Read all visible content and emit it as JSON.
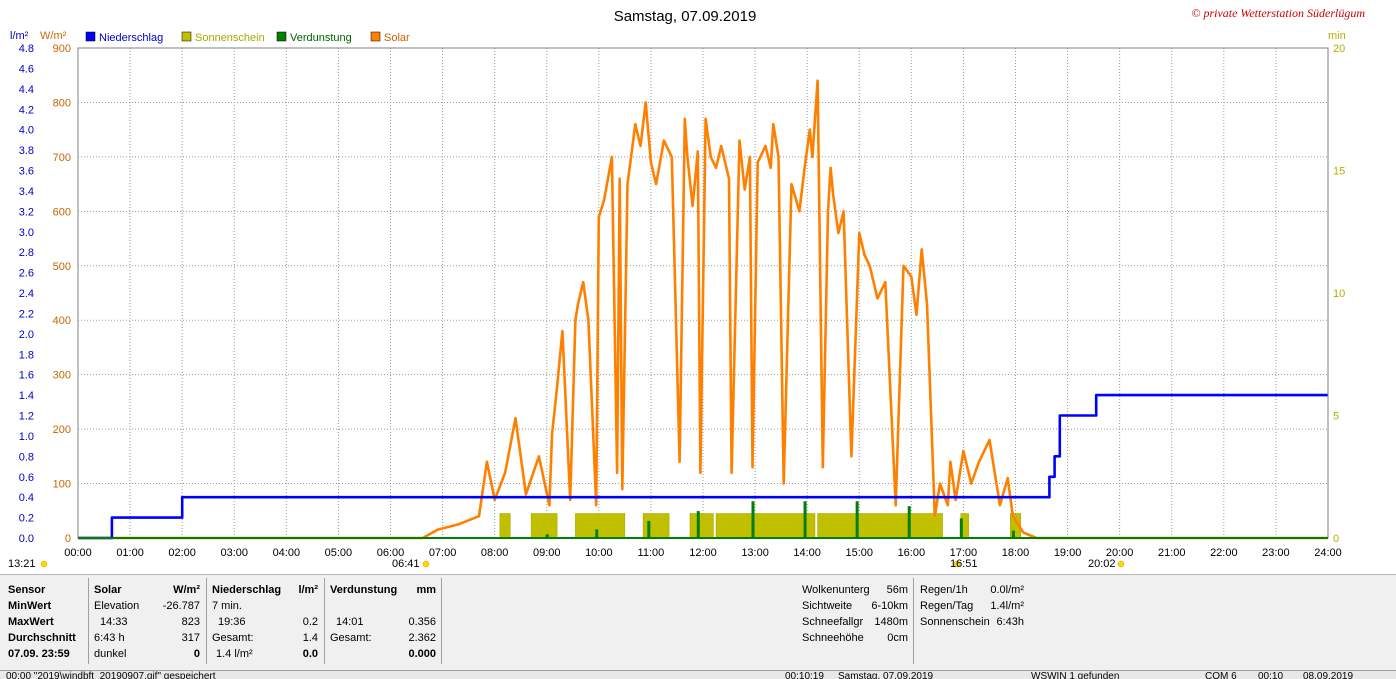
{
  "title": "Samstag, 07.09.2019",
  "copyright": "© private Wetterstation Süderlügum",
  "axis_labels": {
    "left_precip_unit": "l/m²",
    "left_solar_unit": "W/m²",
    "right_unit": "min"
  },
  "legend": [
    {
      "label": "Niederschlag",
      "color": "#0000ff"
    },
    {
      "label": "Sonnenschein",
      "color": "#c0c000"
    },
    {
      "label": "Verdunstung",
      "color": "#008000"
    },
    {
      "label": "Solar",
      "color": "#ff8000"
    }
  ],
  "markers": {
    "first": "13:21",
    "sunrise": "06:41",
    "noon": "16:51",
    "sunset": "20:02"
  },
  "chart_data": {
    "type": "line",
    "x_unit": "hour of day",
    "xlim": [
      0,
      24
    ],
    "x_ticks": [
      "00:00",
      "01:00",
      "02:00",
      "03:00",
      "04:00",
      "05:00",
      "06:00",
      "07:00",
      "08:00",
      "09:00",
      "10:00",
      "11:00",
      "12:00",
      "13:00",
      "14:00",
      "15:00",
      "16:00",
      "17:00",
      "18:00",
      "19:00",
      "20:00",
      "21:00",
      "22:00",
      "23:00",
      "24:00"
    ],
    "y_solar": {
      "min": 0,
      "max": 900,
      "ticks": [
        0,
        100,
        200,
        300,
        400,
        500,
        600,
        700,
        800,
        900
      ]
    },
    "y_precip": {
      "min": 0,
      "max": 4.8,
      "ticks": [
        "0.0",
        "0.2",
        "0.4",
        "0.6",
        "0.8",
        "1.0",
        "1.2",
        "1.4",
        "1.6",
        "1.8",
        "2.0",
        "2.2",
        "2.4",
        "2.6",
        "2.8",
        "3.0",
        "3.2",
        "3.4",
        "3.6",
        "3.8",
        "4.0",
        "4.2",
        "4.4",
        "4.6",
        "4.8"
      ]
    },
    "y_sun": {
      "min": 0,
      "max": 20,
      "ticks": [
        0,
        5,
        10,
        15,
        20
      ]
    },
    "grid": true,
    "series": [
      {
        "name": "Solar",
        "color": "#ff8000",
        "x": [
          0,
          6.62,
          6.9,
          7.3,
          7.7,
          7.85,
          8.0,
          8.2,
          8.4,
          8.6,
          8.85,
          9.05,
          9.1,
          9.2,
          9.3,
          9.45,
          9.55,
          9.6,
          9.7,
          9.8,
          9.95,
          10.0,
          10.1,
          10.25,
          10.35,
          10.4,
          10.45,
          10.55,
          10.7,
          10.8,
          10.9,
          11.0,
          11.1,
          11.25,
          11.4,
          11.55,
          11.65,
          11.7,
          11.8,
          11.9,
          11.95,
          12.05,
          12.15,
          12.25,
          12.35,
          12.5,
          12.55,
          12.7,
          12.8,
          12.9,
          12.95,
          13.05,
          13.2,
          13.3,
          13.35,
          13.45,
          13.55,
          13.7,
          13.85,
          13.95,
          14.05,
          14.1,
          14.2,
          14.3,
          14.4,
          14.45,
          14.5,
          14.6,
          14.7,
          14.85,
          15.0,
          15.1,
          15.2,
          15.35,
          15.5,
          15.7,
          15.85,
          16.0,
          16.1,
          16.2,
          16.3,
          16.45,
          16.55,
          16.7,
          16.75,
          16.85,
          17.0,
          17.15,
          17.3,
          17.5,
          17.7,
          17.85,
          17.95,
          18.15,
          18.4,
          18.6,
          18.8,
          18.9,
          19.0,
          19.1,
          19.2,
          19.35,
          19.55,
          19.8,
          20.05,
          24
        ],
        "y": [
          0,
          0,
          15,
          25,
          40,
          140,
          70,
          120,
          220,
          80,
          150,
          60,
          190,
          280,
          380,
          70,
          400,
          430,
          470,
          400,
          60,
          590,
          620,
          700,
          120,
          660,
          90,
          650,
          760,
          720,
          800,
          690,
          650,
          730,
          700,
          140,
          770,
          700,
          610,
          710,
          120,
          770,
          700,
          680,
          720,
          660,
          120,
          730,
          640,
          700,
          130,
          690,
          720,
          680,
          760,
          700,
          100,
          650,
          600,
          680,
          750,
          700,
          840,
          130,
          600,
          680,
          630,
          560,
          600,
          150,
          560,
          520,
          500,
          440,
          470,
          60,
          500,
          480,
          410,
          530,
          430,
          40,
          100,
          60,
          140,
          70,
          160,
          100,
          140,
          180,
          60,
          110,
          40,
          10,
          0,
          0,
          0,
          0,
          0,
          0,
          0,
          0,
          0,
          0,
          0,
          0
        ]
      },
      {
        "name": "Niederschlag",
        "color": "#0000ff",
        "x": [
          0,
          0.65,
          0.65,
          2.0,
          2.0,
          18.65,
          18.65,
          18.75,
          18.75,
          18.85,
          18.85,
          19.55,
          19.55,
          24
        ],
        "y": [
          0,
          0,
          0.2,
          0.2,
          0.4,
          0.4,
          0.6,
          0.6,
          0.8,
          0.8,
          1.2,
          1.2,
          1.4,
          1.4
        ]
      }
    ],
    "sunshine_bars": [
      [
        8.1,
        8.3
      ],
      [
        8.7,
        9.2
      ],
      [
        9.55,
        10.5
      ],
      [
        10.85,
        11.35
      ],
      [
        11.75,
        12.2
      ],
      [
        12.25,
        14.15
      ],
      [
        14.2,
        16.6
      ],
      [
        16.95,
        17.1
      ],
      [
        17.9,
        18.1
      ]
    ],
    "evaporation_spikes": [
      [
        9.0,
        0.15
      ],
      [
        9.95,
        0.35
      ],
      [
        10.95,
        0.7
      ],
      [
        11.9,
        1.1
      ],
      [
        12.95,
        1.5
      ],
      [
        13.95,
        1.5
      ],
      [
        14.95,
        1.5
      ],
      [
        15.95,
        1.3
      ],
      [
        16.95,
        0.8
      ],
      [
        17.95,
        0.3
      ]
    ]
  },
  "panel": {
    "sensor": {
      "header": "Sensor",
      "min": "MinWert",
      "max": "MaxWert",
      "avg": "Durchschnitt",
      "date": "07.09. 23:59"
    },
    "solar": {
      "header": "Solar",
      "unit": "W/m²",
      "r1a": "Elevation",
      "r1b": "-26.787",
      "r2a": "14:33",
      "r2b": "823",
      "r3a": "6:43 h",
      "r3b": "317",
      "r4a": "dunkel",
      "r4b": "0"
    },
    "niederschlag": {
      "header": "Niederschlag",
      "unit": "l/m²",
      "r1a": "7 min.",
      "r2a": "19:36",
      "r2b": "0.2",
      "r3a": "Gesamt:",
      "r3b": "1.4",
      "r4a": "1.4 l/m²",
      "r4b": "0.0"
    },
    "verdunstung": {
      "header": "Verdunstung",
      "unit": "mm",
      "r2a": "14:01",
      "r2b": "0.356",
      "r3a": "Gesamt:",
      "r3b": "2.362",
      "r4b": "0.000"
    },
    "weather": {
      "wolken_l": "Wolkenunterg",
      "wolken_v": "56m",
      "sicht_l": "Sichtweite",
      "sicht_v": "6-10km",
      "schneefall_l": "Schneefallgr",
      "schneefall_v": "1480m",
      "schnee_l": "Schneehöhe",
      "schnee_v": "0cm"
    },
    "regen": {
      "r1_l": "Regen/1h",
      "r1_v": "0.0l/m²",
      "r2_l": "Regen/Tag",
      "r2_v": "1.4l/m²",
      "r3_l": "Sonnenschein",
      "r3_v": "6:43h"
    }
  },
  "statusbar": {
    "s1": "00:00  \"2019\\windbft_20190907.gif\"  gespeichert",
    "s2": "00:10:19",
    "s3": "Samstag, 07.09.2019",
    "s4": "WSWIN 1 gefunden",
    "s5": "COM 6",
    "s6": "00:10",
    "s7": "08.09.2019"
  }
}
